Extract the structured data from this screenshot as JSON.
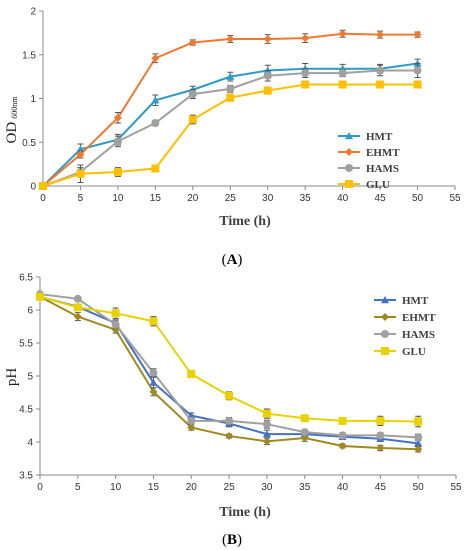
{
  "chart_data": [
    {
      "id": "A",
      "type": "line",
      "caption_letter": "A",
      "xlabel": "Time (h)",
      "ylabel_main": "OD",
      "ylabel_sub": "600nm",
      "xlim": [
        0,
        55
      ],
      "ylim": [
        0,
        2
      ],
      "xticks": [
        0,
        5,
        10,
        15,
        20,
        25,
        30,
        35,
        40,
        45,
        50,
        55
      ],
      "yticks": [
        0,
        0.5,
        1,
        1.5,
        2
      ],
      "ytick_labels": [
        "0",
        "0.5",
        "1",
        "1.5",
        "2"
      ],
      "grid": false,
      "legend": "right",
      "x": [
        0,
        5,
        10,
        15,
        20,
        25,
        30,
        35,
        40,
        45,
        50
      ],
      "series": [
        {
          "name": "HMT",
          "color": "#2E9AC8",
          "marker": "triangle",
          "values": [
            0.0,
            0.42,
            0.53,
            0.98,
            1.1,
            1.25,
            1.32,
            1.34,
            1.34,
            1.34,
            1.4
          ],
          "errors": [
            0.02,
            0.06,
            0.06,
            0.06,
            0.04,
            0.05,
            0.06,
            0.06,
            0.05,
            0.05,
            0.05
          ]
        },
        {
          "name": "EHMT",
          "color": "#F07830",
          "marker": "diamond",
          "values": [
            0.0,
            0.36,
            0.78,
            1.46,
            1.64,
            1.68,
            1.68,
            1.69,
            1.74,
            1.73,
            1.73
          ],
          "errors": [
            0.02,
            0.04,
            0.06,
            0.05,
            0.03,
            0.04,
            0.05,
            0.05,
            0.04,
            0.04,
            0.03
          ]
        },
        {
          "name": "HAMS",
          "color": "#A0A0A0",
          "marker": "circle",
          "values": [
            0.0,
            0.16,
            0.51,
            0.72,
            1.05,
            1.11,
            1.26,
            1.29,
            1.29,
            1.32,
            1.32
          ],
          "errors": [
            0.02,
            0.05,
            0.06,
            0.03,
            0.05,
            0.04,
            0.06,
            0.05,
            0.04,
            0.06,
            0.08
          ]
        },
        {
          "name": "GLU",
          "color": "#FFC000",
          "marker": "square",
          "values": [
            0.0,
            0.14,
            0.16,
            0.2,
            0.76,
            1.01,
            1.09,
            1.16,
            1.16,
            1.16,
            1.16
          ],
          "errors": [
            0.02,
            0.1,
            0.05,
            0.02,
            0.05,
            0.04,
            0.04,
            0.04,
            0.04,
            0.04,
            0.04
          ]
        }
      ]
    },
    {
      "id": "B",
      "type": "line",
      "caption_letter": "B",
      "xlabel": "Time (h)",
      "ylabel_main": "pH",
      "ylabel_sub": "",
      "xlim": [
        0,
        55
      ],
      "ylim": [
        3.5,
        6.5
      ],
      "xticks": [
        0,
        5,
        10,
        15,
        20,
        25,
        30,
        35,
        40,
        45,
        50,
        55
      ],
      "yticks": [
        3.5,
        4,
        4.5,
        5,
        5.5,
        6,
        6.5
      ],
      "ytick_labels": [
        "3.5",
        "4",
        "4.5",
        "5",
        "5.5",
        "6",
        "6.5"
      ],
      "grid": false,
      "legend": "right",
      "x": [
        0,
        5,
        10,
        15,
        20,
        25,
        30,
        35,
        40,
        45,
        50
      ],
      "series": [
        {
          "name": "HMT",
          "color": "#4472C4",
          "marker": "triangle",
          "values": [
            6.2,
            6.05,
            5.8,
            4.9,
            4.4,
            4.28,
            4.12,
            4.12,
            4.08,
            4.05,
            3.98
          ],
          "errors": [
            0.03,
            0.03,
            0.05,
            0.08,
            0.04,
            0.05,
            0.06,
            0.04,
            0.04,
            0.04,
            0.05
          ]
        },
        {
          "name": "EHMT",
          "color": "#A08A20",
          "marker": "diamond",
          "values": [
            6.2,
            5.9,
            5.7,
            4.76,
            4.22,
            4.09,
            4.01,
            4.06,
            3.94,
            3.91,
            3.89
          ],
          "errors": [
            0.03,
            0.06,
            0.05,
            0.06,
            0.04,
            0.03,
            0.05,
            0.05,
            0.03,
            0.04,
            0.04
          ]
        },
        {
          "name": "HAMS",
          "color": "#A0A0A0",
          "marker": "circle",
          "values": [
            6.24,
            6.17,
            5.78,
            5.05,
            4.32,
            4.32,
            4.27,
            4.15,
            4.1,
            4.1,
            4.07
          ],
          "errors": [
            0.03,
            0.03,
            0.05,
            0.06,
            0.04,
            0.05,
            0.06,
            0.04,
            0.04,
            0.04,
            0.05
          ]
        },
        {
          "name": "GLU",
          "color": "#EAD200",
          "marker": "square",
          "values": [
            6.2,
            6.04,
            5.95,
            5.83,
            5.03,
            4.7,
            4.43,
            4.36,
            4.32,
            4.32,
            4.31
          ],
          "errors": [
            0.03,
            0.04,
            0.08,
            0.07,
            0.03,
            0.06,
            0.07,
            0.04,
            0.04,
            0.07,
            0.08
          ]
        }
      ]
    }
  ]
}
